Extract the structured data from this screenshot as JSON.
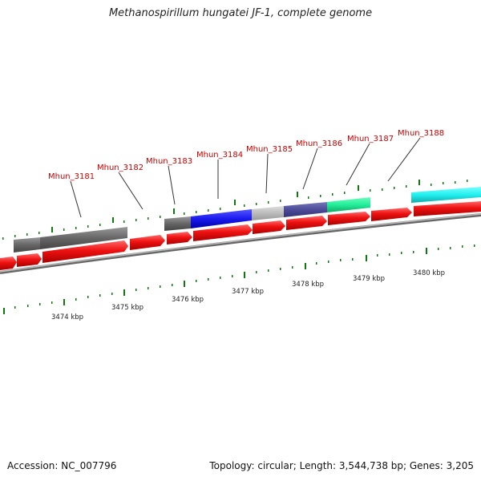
{
  "title": "Methanospirillum hungatei JF-1, complete genome",
  "footer": {
    "accession": "Accession: NC_007796",
    "summary": "Topology: circular; Length: 3,544,738 bp; Genes: 3,205"
  },
  "gene_labels": [
    "Mhun_3181",
    "Mhun_3182",
    "Mhun_3183",
    "Mhun_3184",
    "Mhun_3185",
    "Mhun_3186",
    "Mhun_3187",
    "Mhun_3188"
  ],
  "scale_labels": [
    "3474 kbp",
    "3475 kbp",
    "3476 kbp",
    "3477 kbp",
    "3478 kbp",
    "3479 kbp",
    "3480 kbp"
  ],
  "colors": {
    "cds_red": "#ee1111",
    "feature_dark_gray": "#666666",
    "feature_mid_gray": "#777777",
    "feature_blue": "#1a1aee",
    "feature_light_gray": "#bbbbbb",
    "feature_slate": "#4b4b99",
    "feature_teal": "#22ee99",
    "feature_cyan": "#22f0f0",
    "tick_green": "#117711",
    "label_red": "#cc0000",
    "backbone_gray": "#888888"
  }
}
